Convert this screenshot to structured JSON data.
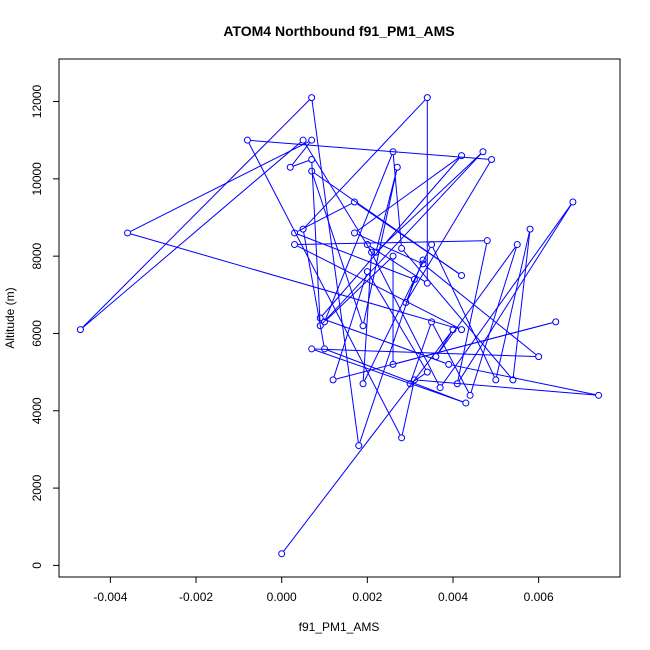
{
  "chart_data": {
    "type": "line",
    "title": "ATOM4 Northbound f91_PM1_AMS",
    "xlabel": "f91_PM1_AMS",
    "ylabel": "Altitude (m)",
    "xlim": [
      -0.0052,
      0.0079
    ],
    "ylim": [
      -300,
      13100
    ],
    "xticks": [
      -0.004,
      -0.002,
      0.0,
      0.002,
      0.004,
      0.006
    ],
    "xtick_labels": [
      "-0.004",
      "-0.002",
      "0.000",
      "0.002",
      "0.004",
      "0.006"
    ],
    "yticks": [
      0,
      2000,
      4000,
      6000,
      8000,
      10000,
      12000
    ],
    "ytick_labels": [
      "0",
      "2000",
      "4000",
      "6000",
      "8000",
      "10000",
      "12000"
    ],
    "grid": false,
    "legend": "none",
    "series": [
      {
        "color": "#0000ff",
        "marker": "open-circle",
        "points": [
          [
            0.0,
            300
          ],
          [
            0.004,
            6100
          ],
          [
            0.0036,
            5400
          ],
          [
            0.0055,
            8300
          ],
          [
            0.0044,
            4400
          ],
          [
            0.0035,
            6300
          ],
          [
            0.003,
            4700
          ],
          [
            0.0034,
            5000
          ],
          [
            0.002,
            7600
          ],
          [
            0.0012,
            4800
          ],
          [
            0.0064,
            6300
          ],
          [
            0.0026,
            5200
          ],
          [
            0.0026,
            8000
          ],
          [
            0.001,
            6300
          ],
          [
            0.0026,
            10700
          ],
          [
            0.0028,
            8200
          ],
          [
            0.0054,
            4800
          ],
          [
            0.0058,
            8700
          ],
          [
            0.005,
            4800
          ],
          [
            0.0035,
            8300
          ],
          [
            0.0019,
            4700
          ],
          [
            0.0021,
            8100
          ],
          [
            0.0005,
            11000
          ],
          [
            -0.0047,
            6100
          ],
          [
            0.0007,
            12100
          ],
          [
            0.0018,
            3100
          ],
          [
            0.0031,
            7400
          ],
          [
            0.0003,
            8600
          ],
          [
            0.0017,
            9400
          ],
          [
            0.0042,
            7500
          ],
          [
            0.0007,
            10200
          ],
          [
            0.0019,
            6200
          ],
          [
            0.0027,
            10300
          ],
          [
            0.0022,
            8100
          ],
          [
            0.0047,
            10700
          ],
          [
            0.0009,
            6200
          ],
          [
            0.0007,
            10500
          ],
          [
            0.0002,
            10300
          ],
          [
            0.0007,
            11000
          ],
          [
            -0.0036,
            8600
          ],
          [
            0.0042,
            6100
          ],
          [
            0.0003,
            8300
          ],
          [
            0.0048,
            8400
          ],
          [
            0.0041,
            4700
          ],
          [
            0.0068,
            9400
          ],
          [
            0.0037,
            4600
          ],
          [
            0.002,
            8300
          ],
          [
            0.0034,
            7300
          ],
          [
            0.0034,
            12100
          ],
          [
            0.0005,
            8700
          ],
          [
            0.001,
            5600
          ],
          [
            0.0043,
            4200
          ],
          [
            0.0007,
            5600
          ],
          [
            0.006,
            5400
          ],
          [
            0.0033,
            7800
          ],
          [
            0.0017,
            8600
          ],
          [
            0.0042,
            10600
          ],
          [
            0.0009,
            6400
          ],
          [
            0.0039,
            5200
          ],
          [
            0.0074,
            4400
          ],
          [
            0.0031,
            4800
          ],
          [
            0.0028,
            3300
          ],
          [
            -0.0008,
            11000
          ],
          [
            0.0049,
            10500
          ],
          [
            0.0029,
            6800
          ],
          [
            0.0033,
            7900
          ]
        ]
      }
    ]
  }
}
